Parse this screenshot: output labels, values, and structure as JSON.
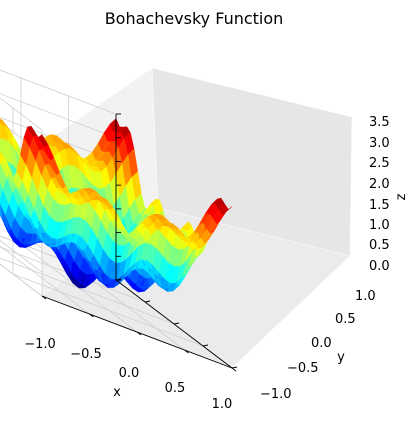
{
  "chart_data": {
    "type": "surface",
    "title": "Bohachevsky Function",
    "xlabel": "x",
    "ylabel": "y",
    "zlabel": "z",
    "xlim": [
      -1.0,
      1.0
    ],
    "ylim": [
      -1.0,
      1.0
    ],
    "zlim": [
      0.0,
      3.5
    ],
    "x_ticks": [
      "−1.0",
      "−0.5",
      "0.0",
      "0.5",
      "1.0"
    ],
    "y_ticks": [
      "−1.0",
      "−0.5",
      "0.0",
      "0.5",
      "1.0"
    ],
    "z_ticks": [
      "0.0",
      "0.5",
      "1.0",
      "1.5",
      "2.0",
      "2.5",
      "3.0",
      "3.5"
    ],
    "colormap": "jet",
    "grid": true
  }
}
